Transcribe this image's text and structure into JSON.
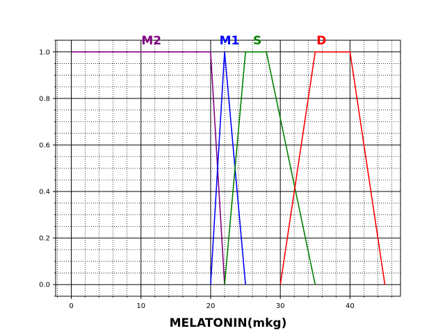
{
  "chart_data": {
    "type": "line",
    "title": "",
    "xlabel": "MELATONIN(mkg)",
    "ylabel": "",
    "xlim": [
      -2.25,
      47.25
    ],
    "ylim": [
      -0.05,
      1.05
    ],
    "x_major_ticks": [
      0,
      10,
      20,
      30,
      40
    ],
    "x_tick_labels": [
      "0",
      "10",
      "20",
      "30",
      "40"
    ],
    "x_minor_step": 2,
    "y_major_ticks": [
      0.0,
      0.2,
      0.4,
      0.6,
      0.8,
      1.0
    ],
    "y_tick_labels": [
      "0.0",
      "0.2",
      "0.4",
      "0.6",
      "0.8",
      "1.0"
    ],
    "y_minor_step": 0.05,
    "grid": true,
    "series": [
      {
        "name": "M2",
        "color": "#800080",
        "x": [
          0,
          20,
          22
        ],
        "y": [
          1,
          1,
          0
        ],
        "label_x": 11.5
      },
      {
        "name": "M1",
        "color": "#0000ff",
        "x": [
          20,
          22,
          25
        ],
        "y": [
          0,
          1,
          0
        ],
        "label_x": 22.7
      },
      {
        "name": "S",
        "color": "#008000",
        "x": [
          22,
          25,
          28,
          35
        ],
        "y": [
          0,
          1,
          1,
          0
        ],
        "label_x": 26.7
      },
      {
        "name": "D",
        "color": "#ff0000",
        "x": [
          30,
          35,
          40,
          45
        ],
        "y": [
          0,
          1,
          1,
          0
        ],
        "label_x": 35.9
      }
    ]
  }
}
